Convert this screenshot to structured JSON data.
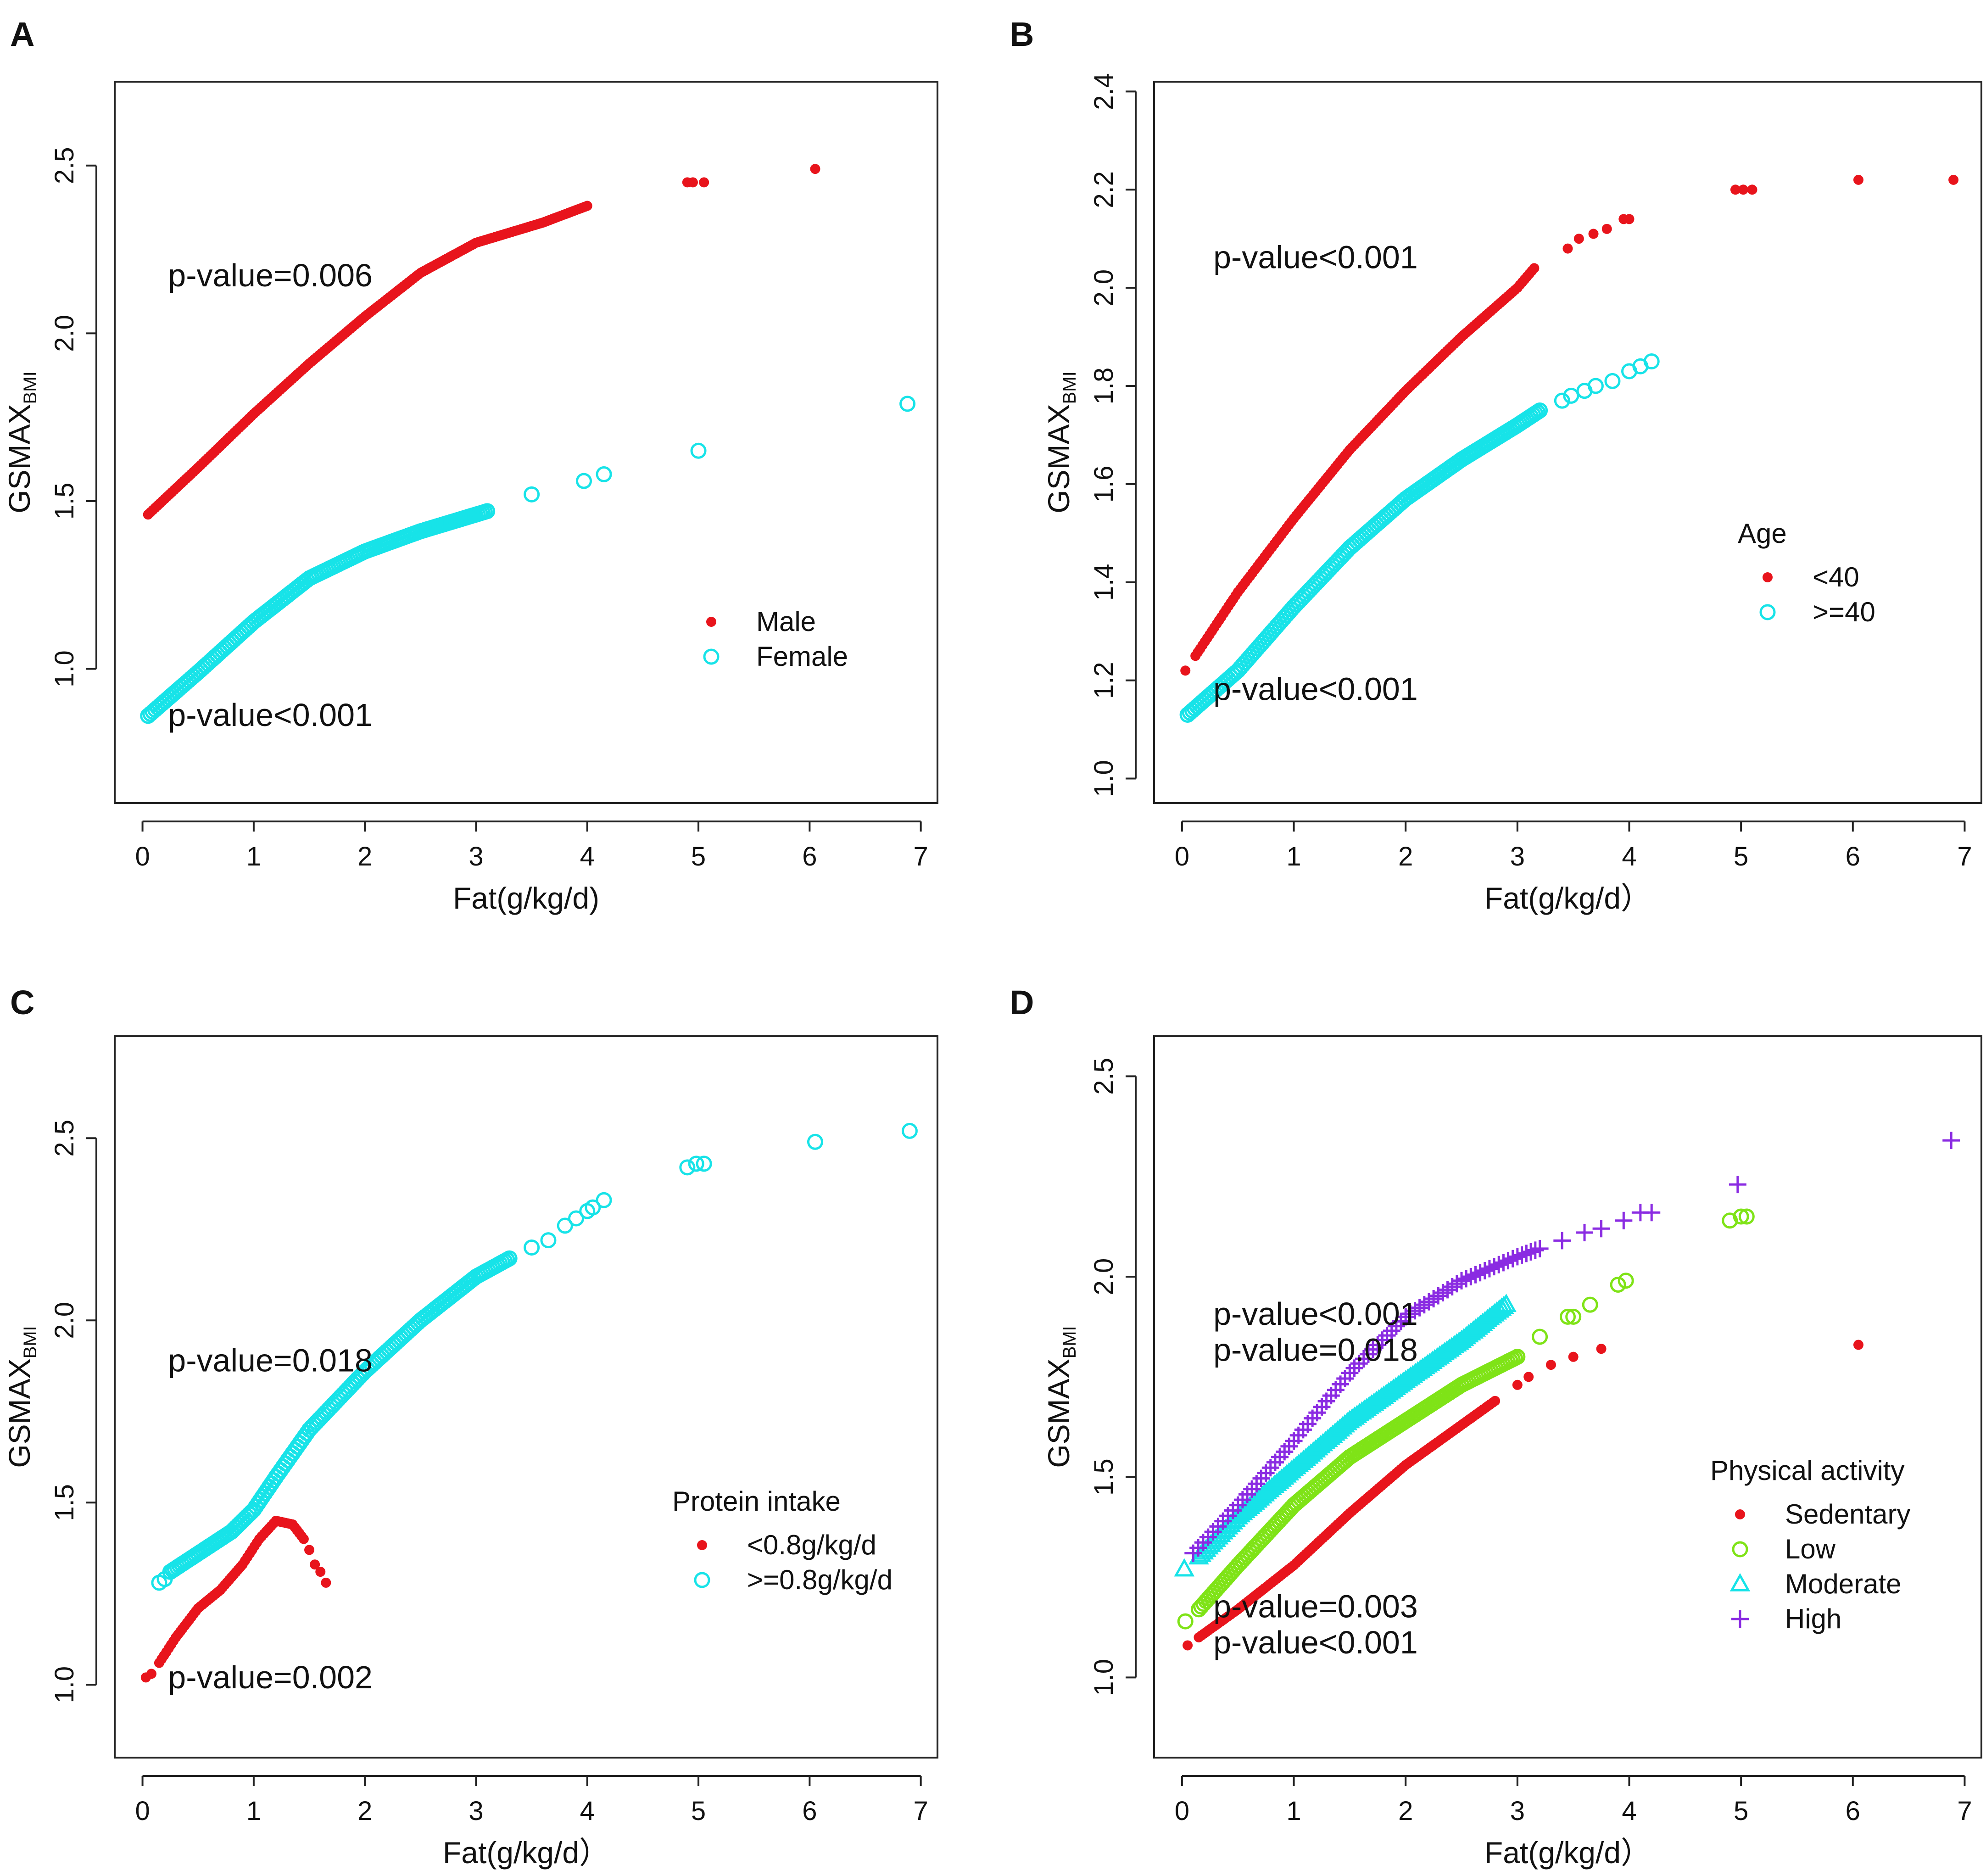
{
  "figure": {
    "panels": [
      "A",
      "B",
      "C",
      "D"
    ]
  },
  "chart_data": [
    {
      "panel": "A",
      "type": "scatter",
      "xlabel": "Fat(g/kg/d)",
      "ylabel_main": "GSMAX",
      "ylabel_sub": "BMI",
      "xlim": [
        -0.25,
        7.15
      ],
      "ylim": [
        0.6,
        2.75
      ],
      "xticks": [
        0,
        1,
        2,
        3,
        4,
        5,
        6,
        7
      ],
      "yticks": [
        1.0,
        1.5,
        2.0,
        2.5
      ],
      "legend": {
        "title": "",
        "position": "right-lower",
        "entries": [
          "Male",
          "Female"
        ]
      },
      "annotations": [
        {
          "text": "p-value=0.006",
          "x": 0.23,
          "y": 2.14
        },
        {
          "text": "p-value<0.001",
          "x": 0.23,
          "y": 0.83
        }
      ],
      "series": [
        {
          "name": "Male",
          "marker": "dot",
          "color": "#e8141c",
          "curve": [
            [
              0.05,
              1.46
            ],
            [
              0.5,
              1.6
            ],
            [
              1.0,
              1.76
            ],
            [
              1.5,
              1.91
            ],
            [
              2.0,
              2.05
            ],
            [
              2.5,
              2.18
            ],
            [
              3.0,
              2.27
            ],
            [
              3.3,
              2.3
            ],
            [
              3.6,
              2.33
            ],
            [
              4.0,
              2.38
            ]
          ],
          "points": [
            [
              4.9,
              2.45
            ],
            [
              4.95,
              2.45
            ],
            [
              5.05,
              2.45
            ],
            [
              6.05,
              2.49
            ]
          ]
        },
        {
          "name": "Female",
          "marker": "circle",
          "color": "#17e3e8",
          "curve": [
            [
              0.05,
              0.86
            ],
            [
              0.5,
              0.99
            ],
            [
              1.0,
              1.14
            ],
            [
              1.5,
              1.27
            ],
            [
              2.0,
              1.35
            ],
            [
              2.5,
              1.41
            ],
            [
              3.1,
              1.47
            ]
          ],
          "points": [
            [
              3.5,
              1.52
            ],
            [
              3.97,
              1.56
            ],
            [
              4.15,
              1.58
            ],
            [
              5.0,
              1.65
            ],
            [
              6.88,
              1.79
            ]
          ]
        }
      ]
    },
    {
      "panel": "B",
      "type": "scatter",
      "xlabel": "Fat(g/kg/d）",
      "ylabel_main": "GSMAX",
      "ylabel_sub": "BMI",
      "xlim": [
        -0.25,
        7.15
      ],
      "ylim": [
        0.95,
        2.42
      ],
      "xticks": [
        0,
        1,
        2,
        3,
        4,
        5,
        6,
        7
      ],
      "yticks": [
        1.0,
        1.2,
        1.4,
        1.6,
        1.8,
        2.0,
        2.2,
        2.4
      ],
      "legend": {
        "title": "Age",
        "position": "right-lower",
        "entries": [
          "<40",
          ">=40"
        ]
      },
      "annotations": [
        {
          "text": "p-value<0.001",
          "x": 0.28,
          "y": 2.04
        },
        {
          "text": "p-value<0.001",
          "x": 0.28,
          "y": 1.16
        }
      ],
      "series": [
        {
          "name": "<40",
          "marker": "dot",
          "color": "#e8141c",
          "curve": [
            [
              0.12,
              1.25
            ],
            [
              0.5,
              1.38
            ],
            [
              1.0,
              1.53
            ],
            [
              1.5,
              1.67
            ],
            [
              2.0,
              1.79
            ],
            [
              2.5,
              1.9
            ],
            [
              3.0,
              2.0
            ],
            [
              3.15,
              2.04
            ]
          ],
          "points": [
            [
              0.03,
              1.22
            ],
            [
              3.45,
              2.08
            ],
            [
              3.55,
              2.1
            ],
            [
              3.68,
              2.11
            ],
            [
              3.8,
              2.12
            ],
            [
              3.95,
              2.14
            ],
            [
              4.0,
              2.14
            ],
            [
              4.95,
              2.2
            ],
            [
              5.02,
              2.2
            ],
            [
              5.1,
              2.2
            ],
            [
              6.05,
              2.22
            ],
            [
              6.9,
              2.22
            ]
          ]
        },
        {
          "name": ">=40",
          "marker": "circle",
          "color": "#17e3e8",
          "curve": [
            [
              0.05,
              1.13
            ],
            [
              0.5,
              1.22
            ],
            [
              1.0,
              1.35
            ],
            [
              1.5,
              1.47
            ],
            [
              2.0,
              1.57
            ],
            [
              2.5,
              1.65
            ],
            [
              3.0,
              1.72
            ],
            [
              3.2,
              1.75
            ]
          ],
          "points": [
            [
              3.4,
              1.77
            ],
            [
              3.48,
              1.78
            ],
            [
              3.6,
              1.79
            ],
            [
              3.7,
              1.8
            ],
            [
              3.85,
              1.81
            ],
            [
              4.0,
              1.83
            ],
            [
              4.1,
              1.84
            ],
            [
              4.2,
              1.85
            ]
          ]
        }
      ]
    },
    {
      "panel": "C",
      "type": "scatter",
      "xlabel": "Fat(g/kg/d）",
      "ylabel_main": "GSMAX",
      "ylabel_sub": "BMI",
      "xlim": [
        -0.25,
        7.15
      ],
      "ylim": [
        0.8,
        2.78
      ],
      "xticks": [
        0,
        1,
        2,
        3,
        4,
        5,
        6,
        7
      ],
      "yticks": [
        1.0,
        1.5,
        2.0,
        2.5
      ],
      "legend": {
        "title": "Protein intake",
        "position": "right-lower",
        "entries": [
          "<0.8g/kg/d",
          ">=0.8g/kg/d"
        ]
      },
      "annotations": [
        {
          "text": "p-value=0.018",
          "x": 0.23,
          "y": 1.86
        },
        {
          "text": "p-value=0.002",
          "x": 0.23,
          "y": 0.99
        }
      ],
      "series": [
        {
          "name": "<0.8g/kg/d",
          "marker": "dot",
          "color": "#e8141c",
          "curve": [
            [
              0.15,
              1.06
            ],
            [
              0.3,
              1.13
            ],
            [
              0.5,
              1.21
            ],
            [
              0.7,
              1.26
            ],
            [
              0.9,
              1.33
            ],
            [
              1.05,
              1.4
            ],
            [
              1.2,
              1.45
            ],
            [
              1.35,
              1.44
            ],
            [
              1.45,
              1.4
            ]
          ],
          "points": [
            [
              0.03,
              1.02
            ],
            [
              0.08,
              1.03
            ],
            [
              1.5,
              1.37
            ],
            [
              1.55,
              1.33
            ],
            [
              1.6,
              1.31
            ],
            [
              1.65,
              1.28
            ]
          ]
        },
        {
          "name": ">=0.8g/kg/d",
          "marker": "circle",
          "color": "#17e3e8",
          "curve": [
            [
              0.25,
              1.31
            ],
            [
              0.5,
              1.36
            ],
            [
              0.8,
              1.42
            ],
            [
              1.0,
              1.48
            ],
            [
              1.2,
              1.57
            ],
            [
              1.5,
              1.7
            ],
            [
              2.0,
              1.86
            ],
            [
              2.5,
              2.0
            ],
            [
              3.0,
              2.12
            ],
            [
              3.3,
              2.17
            ]
          ],
          "points": [
            [
              0.15,
              1.28
            ],
            [
              0.2,
              1.29
            ],
            [
              3.5,
              2.2
            ],
            [
              3.65,
              2.22
            ],
            [
              3.8,
              2.26
            ],
            [
              3.9,
              2.28
            ],
            [
              4.0,
              2.3
            ],
            [
              4.05,
              2.31
            ],
            [
              4.15,
              2.33
            ],
            [
              4.9,
              2.42
            ],
            [
              4.98,
              2.43
            ],
            [
              5.05,
              2.43
            ],
            [
              6.05,
              2.49
            ],
            [
              6.9,
              2.52
            ]
          ]
        }
      ]
    },
    {
      "panel": "D",
      "type": "scatter",
      "xlabel": "Fat(g/kg/d）",
      "ylabel_main": "GSMAX",
      "ylabel_sub": "BMI",
      "xlim": [
        -0.25,
        7.15
      ],
      "ylim": [
        0.8,
        2.6
      ],
      "xticks": [
        0,
        1,
        2,
        3,
        4,
        5,
        6,
        7
      ],
      "yticks": [
        1.0,
        1.5,
        2.0,
        2.5
      ],
      "legend": {
        "title": "Physical activity",
        "position": "right-lower",
        "entries": [
          "Sedentary",
          "Low",
          "Moderate",
          "High"
        ]
      },
      "annotations": [
        {
          "text": "p-value<0.001",
          "x": 0.28,
          "y": 1.88
        },
        {
          "text": "p-value=0.018",
          "x": 0.28,
          "y": 1.79
        },
        {
          "text": "p-value=0.003",
          "x": 0.28,
          "y": 1.15
        },
        {
          "text": "p-value<0.001",
          "x": 0.28,
          "y": 1.06
        }
      ],
      "series": [
        {
          "name": "Sedentary",
          "marker": "dot",
          "color": "#e8141c",
          "curve": [
            [
              0.15,
              1.1
            ],
            [
              0.5,
              1.17
            ],
            [
              1.0,
              1.28
            ],
            [
              1.5,
              1.41
            ],
            [
              2.0,
              1.53
            ],
            [
              2.5,
              1.63
            ],
            [
              2.8,
              1.69
            ]
          ],
          "points": [
            [
              0.05,
              1.08
            ],
            [
              3.0,
              1.73
            ],
            [
              3.1,
              1.75
            ],
            [
              3.3,
              1.78
            ],
            [
              3.5,
              1.8
            ],
            [
              3.75,
              1.82
            ],
            [
              6.05,
              1.83
            ]
          ]
        },
        {
          "name": "Low",
          "marker": "circle",
          "color": "#7fe317",
          "curve": [
            [
              0.15,
              1.17
            ],
            [
              0.5,
              1.28
            ],
            [
              1.0,
              1.43
            ],
            [
              1.5,
              1.55
            ],
            [
              2.0,
              1.64
            ],
            [
              2.5,
              1.73
            ],
            [
              3.0,
              1.8
            ]
          ],
          "points": [
            [
              0.03,
              1.14
            ],
            [
              3.2,
              1.85
            ],
            [
              3.45,
              1.9
            ],
            [
              3.5,
              1.9
            ],
            [
              3.65,
              1.93
            ],
            [
              3.9,
              1.98
            ],
            [
              3.97,
              1.99
            ],
            [
              4.9,
              2.14
            ],
            [
              5.0,
              2.15
            ],
            [
              5.05,
              2.15
            ]
          ]
        },
        {
          "name": "Moderate",
          "marker": "triangle",
          "color": "#17e3e8",
          "curve": [
            [
              0.15,
              1.3
            ],
            [
              0.5,
              1.4
            ],
            [
              1.0,
              1.52
            ],
            [
              1.5,
              1.64
            ],
            [
              2.0,
              1.74
            ],
            [
              2.5,
              1.84
            ],
            [
              2.9,
              1.93
            ]
          ],
          "points": [
            [
              0.02,
              1.27
            ]
          ]
        },
        {
          "name": "High",
          "marker": "plus",
          "color": "#8a2be2",
          "curve": [
            [
              0.1,
              1.31
            ],
            [
              0.5,
              1.43
            ],
            [
              1.0,
              1.59
            ],
            [
              1.5,
              1.76
            ],
            [
              2.0,
              1.9
            ],
            [
              2.5,
              1.99
            ],
            [
              3.0,
              2.05
            ],
            [
              3.2,
              2.07
            ]
          ],
          "points": [
            [
              3.4,
              2.09
            ],
            [
              3.6,
              2.11
            ],
            [
              3.75,
              2.12
            ],
            [
              3.95,
              2.14
            ],
            [
              4.1,
              2.16
            ],
            [
              4.2,
              2.16
            ],
            [
              4.97,
              2.23
            ],
            [
              6.88,
              2.34
            ]
          ]
        }
      ]
    }
  ]
}
